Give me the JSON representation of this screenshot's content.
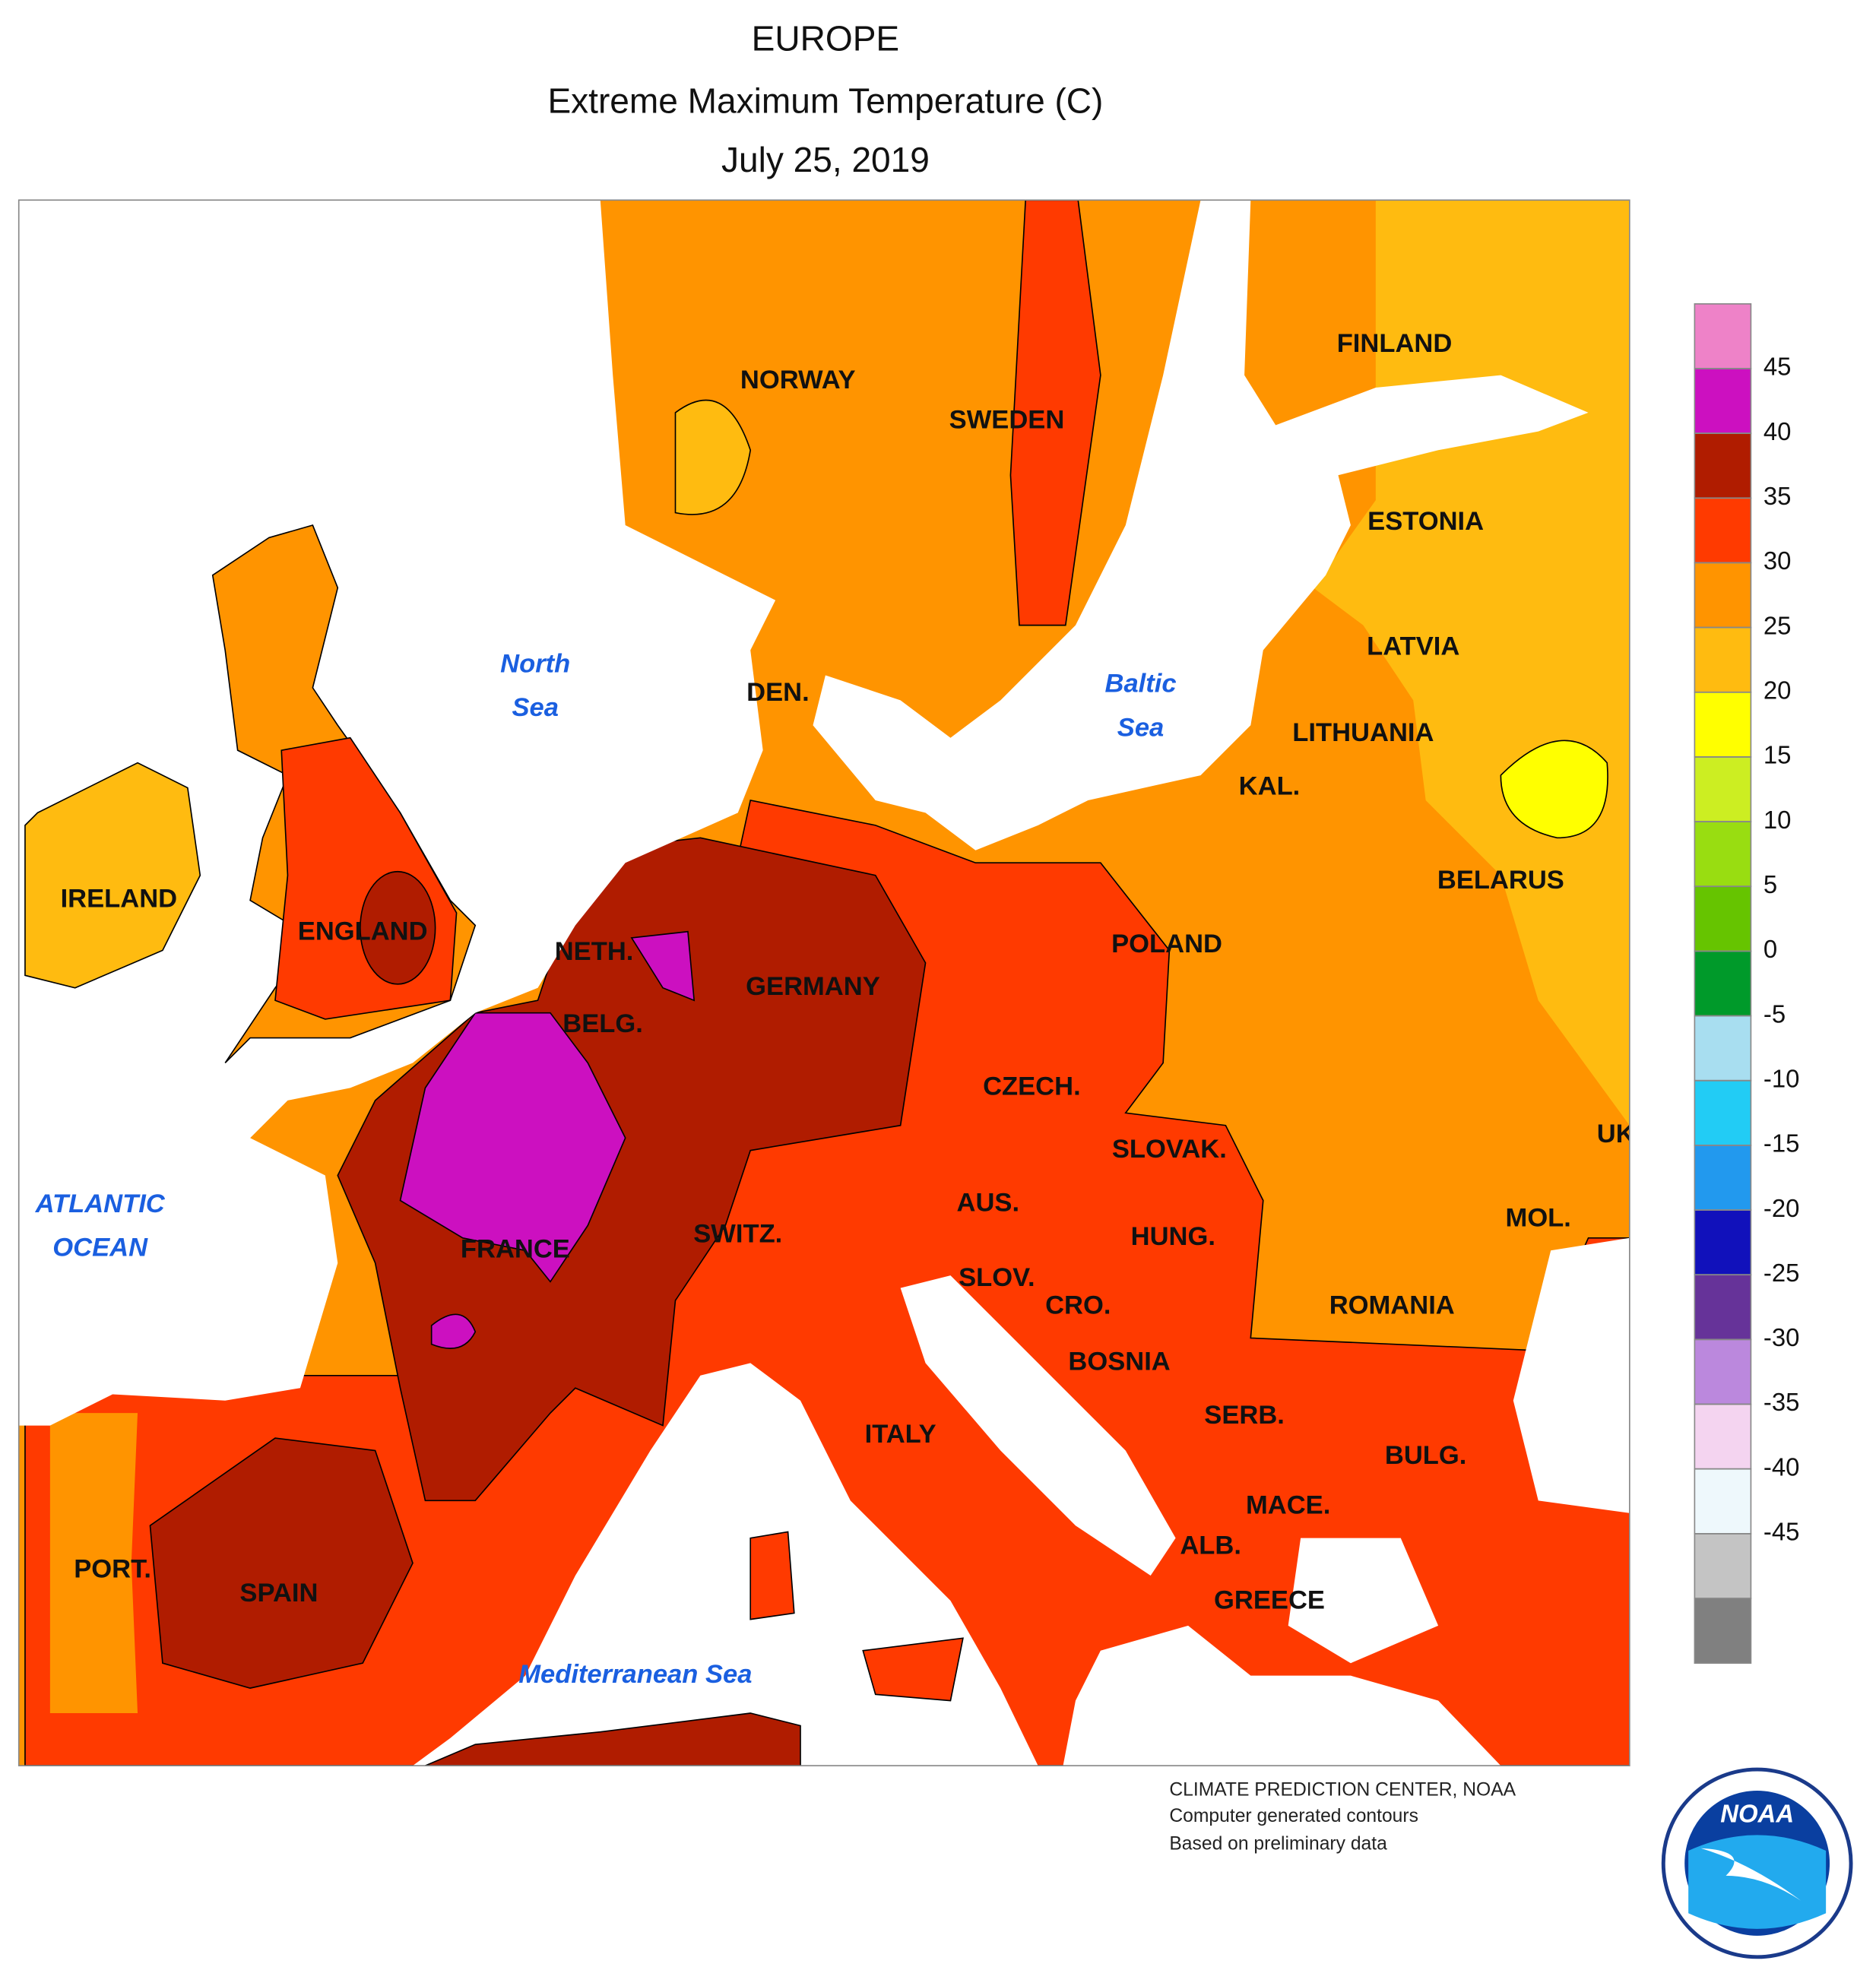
{
  "header": {
    "title": "EUROPE",
    "subtitle": "Extreme Maximum Temperature (C)",
    "date": "July 25, 2019"
  },
  "map": {
    "countries": [
      "NORWAY",
      "SWEDEN",
      "FINLAND",
      "ESTONIA",
      "LATVIA",
      "LITHUANIA",
      "KAL.",
      "DEN.",
      "IRELAND",
      "ENGLAND",
      "NETH.",
      "BELG.",
      "GERMANY",
      "POLAND",
      "BELARUS",
      "CZECH.",
      "SLOVAK.",
      "UK",
      "MOL.",
      "AUS.",
      "HUNG.",
      "ROMANIA",
      "SWITZ.",
      "FRANCE",
      "SLOV.",
      "CRO.",
      "BOSNIA",
      "SERB.",
      "BULG.",
      "ITALY",
      "MACE.",
      "ALB.",
      "GREECE",
      "PORT.",
      "SPAIN"
    ],
    "waters": [
      [
        "North",
        "Sea"
      ],
      [
        "Baltic",
        "Sea"
      ],
      [
        "ATLANTIC",
        "OCEAN"
      ],
      [
        "Mediterranean Sea"
      ]
    ]
  },
  "colorbar": {
    "ticks": [
      45,
      40,
      35,
      30,
      25,
      20,
      15,
      10,
      5,
      0,
      -5,
      -10,
      -15,
      -20,
      -25,
      -30,
      -35,
      -40,
      -45
    ],
    "colors": [
      "#ee82c8",
      "#cc10c0",
      "#b01c00",
      "#ff3a00",
      "#ff9400",
      "#ffbb10",
      "#ffff00",
      "#ccee22",
      "#99dd11",
      "#66c400",
      "#009a2a",
      "#a8def0",
      "#22ccf5",
      "#2299ee",
      "#1111bb",
      "#663399",
      "#bb88dd",
      "#f4d4f0",
      "#eef8fc",
      "#c4c4c4",
      "#808080"
    ]
  },
  "credits": {
    "lines": [
      "CLIMATE PREDICTION CENTER, NOAA",
      "Computer generated contours",
      "Based on preliminary data"
    ],
    "logo": "NOAA"
  }
}
